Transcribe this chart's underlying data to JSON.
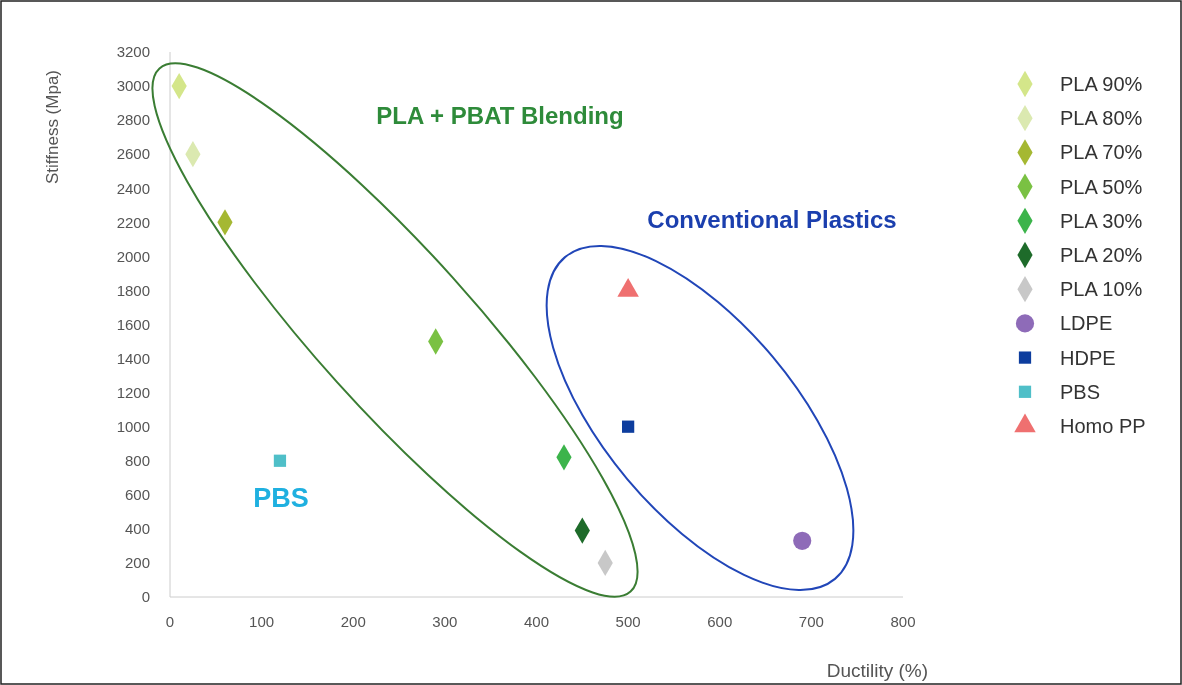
{
  "chart_data": {
    "type": "scatter",
    "xlabel": "Ductility (%)",
    "ylabel": "Stiffness (Mpa)",
    "xlim": [
      0,
      800
    ],
    "xticks": [
      0,
      100,
      200,
      300,
      400,
      500,
      600,
      700,
      800
    ],
    "ylim": [
      0,
      3200
    ],
    "yticks": [
      0,
      200,
      400,
      600,
      800,
      1000,
      1200,
      1400,
      1600,
      1800,
      2000,
      2200,
      2400,
      2600,
      2800,
      3000,
      3200
    ],
    "grid": false,
    "legend": "right",
    "series": [
      {
        "name": "PLA 90%",
        "color": "#d4e68a",
        "marker": "diamond",
        "x": [
          10
        ],
        "values": [
          3000
        ]
      },
      {
        "name": "PLA 80%",
        "color": "#dbe9b0",
        "marker": "diamond",
        "x": [
          25
        ],
        "values": [
          2600
        ]
      },
      {
        "name": "PLA 70%",
        "color": "#a5b832",
        "marker": "diamond",
        "x": [
          60
        ],
        "values": [
          2200
        ]
      },
      {
        "name": "PLA 50%",
        "color": "#7ac143",
        "marker": "diamond",
        "x": [
          290
        ],
        "values": [
          1500
        ]
      },
      {
        "name": "PLA 30%",
        "color": "#3cb44b",
        "marker": "diamond",
        "x": [
          430
        ],
        "values": [
          820
        ]
      },
      {
        "name": "PLA 20%",
        "color": "#1e6b2a",
        "marker": "diamond",
        "x": [
          450
        ],
        "values": [
          390
        ]
      },
      {
        "name": "PLA 10%",
        "color": "#c8c8c8",
        "marker": "diamond",
        "x": [
          475
        ],
        "values": [
          200
        ]
      },
      {
        "name": "LDPE",
        "color": "#8e6bb8",
        "marker": "circle",
        "x": [
          690
        ],
        "values": [
          330
        ]
      },
      {
        "name": "HDPE",
        "color": "#0d3d9e",
        "marker": "square",
        "x": [
          500
        ],
        "values": [
          1000
        ]
      },
      {
        "name": "PBS",
        "color": "#4fbfc8",
        "marker": "square",
        "x": [
          120
        ],
        "values": [
          800
        ]
      },
      {
        "name": "Homo PP",
        "color": "#ef7070",
        "marker": "triangle",
        "x": [
          500
        ],
        "values": [
          1800
        ]
      }
    ],
    "annotations": [
      "PLA + PBAT Blending",
      "Conventional Plastics",
      "PBS"
    ]
  }
}
